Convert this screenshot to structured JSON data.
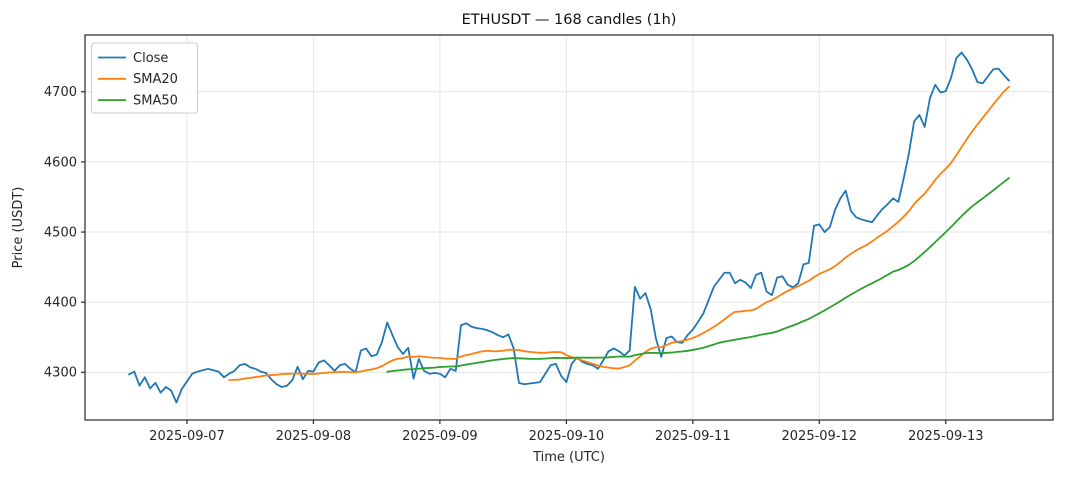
{
  "chart_data": {
    "type": "line",
    "symbol": "ETHUSDT",
    "candles": 168,
    "interval": "1h",
    "title": "ETHUSDT — 168 candles (1h)",
    "xlabel": "Time (UTC)",
    "ylabel": "Price (USDT)",
    "grid": true,
    "legend_position": "upper-left",
    "x_tick_labels": [
      "2025-09-07",
      "2025-09-08",
      "2025-09-09",
      "2025-09-10",
      "2025-09-11",
      "2025-09-12",
      "2025-09-13"
    ],
    "x_tick_hours": [
      11,
      35,
      59,
      83,
      107,
      131,
      155
    ],
    "y_ticks": [
      4300,
      4400,
      4500,
      4600,
      4700
    ],
    "xlim_hours": [
      -8.35,
      175.35
    ],
    "ylim": [
      4232,
      4781
    ],
    "colors": {
      "close": "#1f77b4",
      "sma20": "#ff7f0e",
      "sma50": "#2ca02c",
      "grid": "#e6e6e6",
      "spine": "#262626",
      "legend_border": "#cccccc"
    },
    "series": [
      {
        "name": "Close",
        "color": "#1f77b4",
        "kind": "raw"
      },
      {
        "name": "SMA20",
        "color": "#ff7f0e",
        "kind": "sma",
        "period": 20
      },
      {
        "name": "SMA50",
        "color": "#2ca02c",
        "kind": "sma",
        "period": 50
      }
    ],
    "close": [
      4297,
      4301,
      4281,
      4293,
      4277,
      4285,
      4271,
      4279,
      4274,
      4257,
      4276,
      4287,
      4298,
      4301,
      4303,
      4305,
      4303,
      4301,
      4293,
      4298,
      4302,
      4310,
      4312,
      4307,
      4305,
      4301,
      4299,
      4290,
      4283,
      4279,
      4281,
      4289,
      4308,
      4290,
      4302,
      4301,
      4314,
      4317,
      4310,
      4302,
      4310,
      4312,
      4305,
      4300,
      4331,
      4334,
      4323,
      4325,
      4343,
      4371,
      4353,
      4336,
      4326,
      4335,
      4291,
      4319,
      4302,
      4298,
      4299,
      4298,
      4293,
      4305,
      4302,
      4367,
      4370,
      4365,
      4363,
      4362,
      4360,
      4357,
      4353,
      4350,
      4354,
      4334,
      4285,
      4283,
      4284,
      4285,
      4286,
      4298,
      4310,
      4312,
      4295,
      4286,
      4312,
      4321,
      4315,
      4312,
      4310,
      4305,
      4317,
      4330,
      4334,
      4330,
      4324,
      4331,
      4422,
      4405,
      4413,
      4390,
      4348,
      4322,
      4349,
      4351,
      4343,
      4342,
      4353,
      4361,
      4372,
      4384,
      4403,
      4422,
      4432,
      4442,
      4442,
      4427,
      4432,
      4428,
      4420,
      4439,
      4442,
      4415,
      4410,
      4435,
      4437,
      4425,
      4421,
      4427,
      4454,
      4456,
      4509,
      4511,
      4500,
      4507,
      4532,
      4548,
      4559,
      4530,
      4521,
      4518,
      4516,
      4514,
      4524,
      4533,
      4540,
      4548,
      4543,
      4576,
      4612,
      4658,
      4667,
      4650,
      4691,
      4710,
      4699,
      4701,
      4720,
      4748,
      4756,
      4746,
      4732,
      4714,
      4712,
      4722,
      4732,
      4733,
      4724,
      4716
    ]
  }
}
